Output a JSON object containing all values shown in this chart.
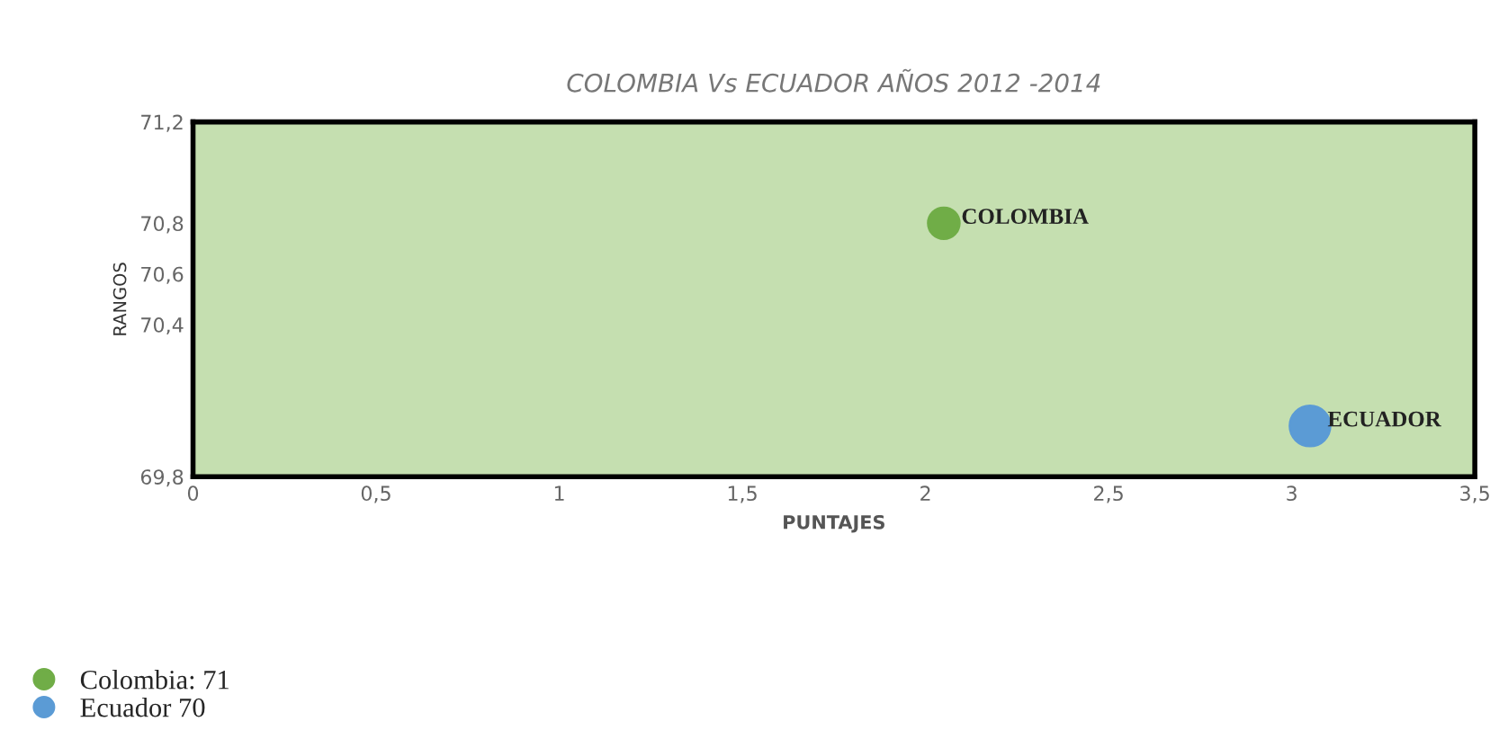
{
  "chart_data": {
    "type": "bubble",
    "title": "COLOMBIA Vs ECUADOR AÑOS 2012 -2014",
    "xlabel": "PUNTAJES",
    "ylabel": "RANGOS",
    "series": [
      {
        "name": "Colombia: 71",
        "color": "#70ad47",
        "x": [
          2.05
        ],
        "values": [
          70.8
        ],
        "sizes": [
          0.6
        ]
      },
      {
        "name": "Ecuador 70",
        "color": "#5b9bd5",
        "x": [
          3.05
        ],
        "values": [
          70.0
        ],
        "sizes": [
          1
        ]
      }
    ],
    "annotations": [
      {
        "text": "COLOMBIA",
        "x": 2.05,
        "y": 70.8
      },
      {
        "text": "ECUADOR",
        "x": 3.05,
        "y": 70.0
      }
    ],
    "xlim": [
      0,
      3.5
    ],
    "xticks": [
      {
        "value": 0,
        "label": "0"
      },
      {
        "value": 0.5,
        "label": "0,5"
      },
      {
        "value": 1,
        "label": "1"
      },
      {
        "value": 1.5,
        "label": "1,5"
      },
      {
        "value": 2,
        "label": "2"
      },
      {
        "value": 2.5,
        "label": "2,5"
      },
      {
        "value": 3,
        "label": "3"
      },
      {
        "value": 3.5,
        "label": "3,5"
      }
    ],
    "ylim": [
      69.8,
      71.2
    ],
    "yticks": [
      {
        "value": 69.8,
        "label": "69,8"
      },
      {
        "value": 70.4,
        "label": "70,4"
      },
      {
        "value": 70.6,
        "label": "70,6"
      },
      {
        "value": 70.8,
        "label": "70,8"
      },
      {
        "value": 71.2,
        "label": "71,2"
      }
    ],
    "grid": false,
    "legend": "bottom left"
  }
}
